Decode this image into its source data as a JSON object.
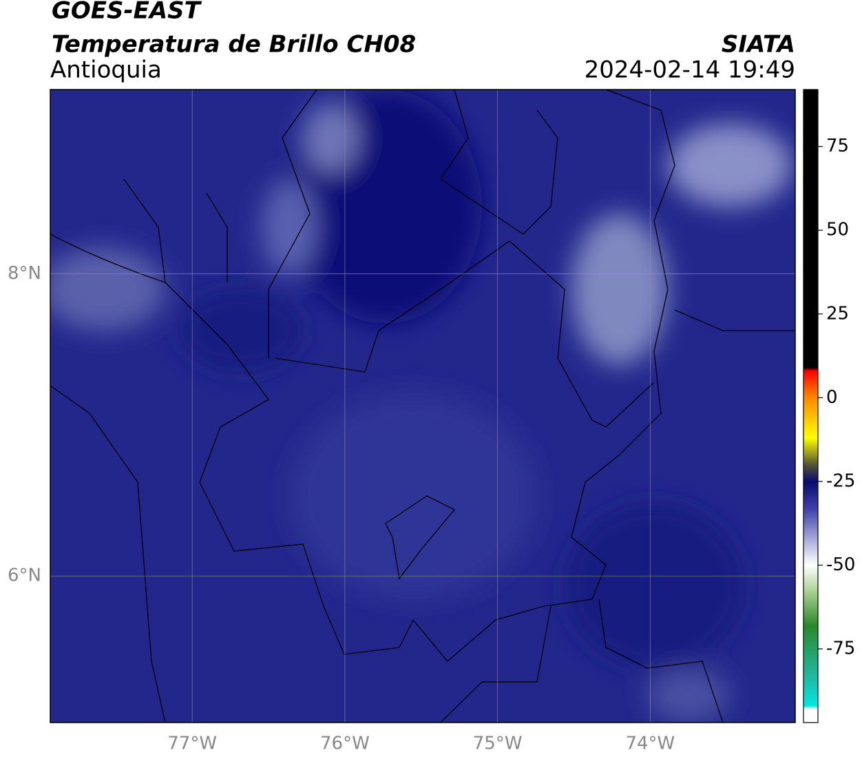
{
  "header": {
    "title": "GOES-EAST",
    "subtitle": "Temperatura de Brillo CH08",
    "region": "Antioquia",
    "source": "SIATA",
    "datetime": "2024-02-14 19:49"
  },
  "map": {
    "xlim": [
      -77.93,
      -73.05
    ],
    "ylim": [
      5.03,
      9.22
    ],
    "xticks": [
      {
        "value": -77,
        "label": "77°W"
      },
      {
        "value": -76,
        "label": "76°W"
      },
      {
        "value": -75,
        "label": "75°W"
      },
      {
        "value": -74,
        "label": "74°W"
      }
    ],
    "yticks": [
      {
        "value": 8,
        "label": "8°N"
      },
      {
        "value": 6,
        "label": "6°N"
      }
    ],
    "grid": true
  },
  "colorbar": {
    "ylim": [
      -97,
      92
    ],
    "yticks": [
      75,
      50,
      25,
      0,
      -25,
      -50,
      -75
    ],
    "stops": [
      {
        "value": 92,
        "color": "#000000"
      },
      {
        "value": 9,
        "color": "#000000"
      },
      {
        "value": 8,
        "color": "#ff0000"
      },
      {
        "value": 0,
        "color": "#ff8800"
      },
      {
        "value": -12,
        "color": "#ffff00"
      },
      {
        "value": -20,
        "color": "#555533"
      },
      {
        "value": -25,
        "color": "#0a0a70"
      },
      {
        "value": -33,
        "color": "#3a40a8"
      },
      {
        "value": -45,
        "color": "#c8c8e8"
      },
      {
        "value": -50,
        "color": "#ffffff"
      },
      {
        "value": -58,
        "color": "#a8d090"
      },
      {
        "value": -68,
        "color": "#2a8a2a"
      },
      {
        "value": -83,
        "color": "#20b8a0"
      },
      {
        "value": -92,
        "color": "#00e8e0"
      },
      {
        "value": -93,
        "color": "#ffffff"
      },
      {
        "value": -97,
        "color": "#ffffff"
      }
    ]
  }
}
